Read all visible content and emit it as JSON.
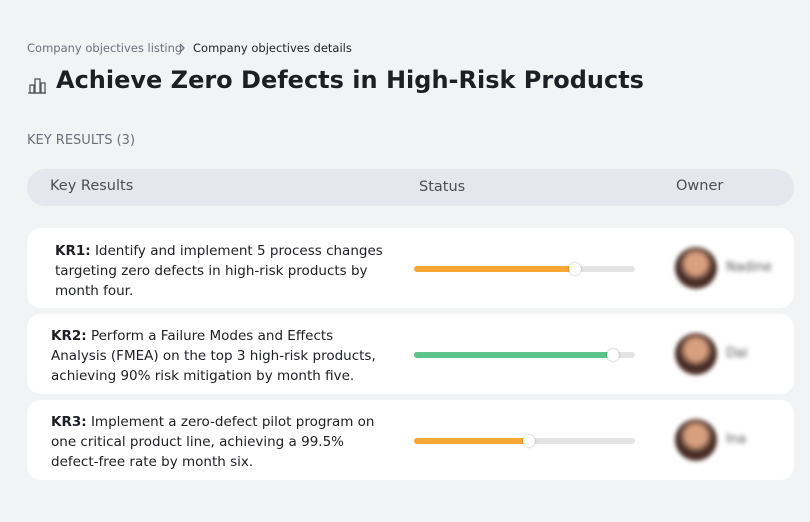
{
  "breadcrumb": [
    "Company objectives listing",
    "Company objectives details"
  ],
  "title": "Achieve Zero Defects in High-Risk Products",
  "section": "KEY RESULTS (3)",
  "columns": [
    "Key Results",
    "Status",
    "Owner"
  ],
  "rows": [
    {
      "label": "KR1:",
      "text": "Identify and implement 5 process changes targeting zero defects in high-risk products by month four.",
      "progress": 73,
      "color": "#f7a733",
      "owner": "Nadine"
    },
    {
      "label": "KR2:",
      "text": "Perform a Failure Modes and Effects Analysis (FMEA) on the top 3 high-risk products, achieving 90% risk mitigation by month five.",
      "progress": 90,
      "color": "#5cc38b",
      "owner": "Dai"
    },
    {
      "label": "KR3:",
      "text": "Implement a zero-defect pilot program on one critical product line, achieving a 99.5% defect-free rate by month six.",
      "progress": 52,
      "color": "#f7a733",
      "owner": "Ina"
    }
  ]
}
